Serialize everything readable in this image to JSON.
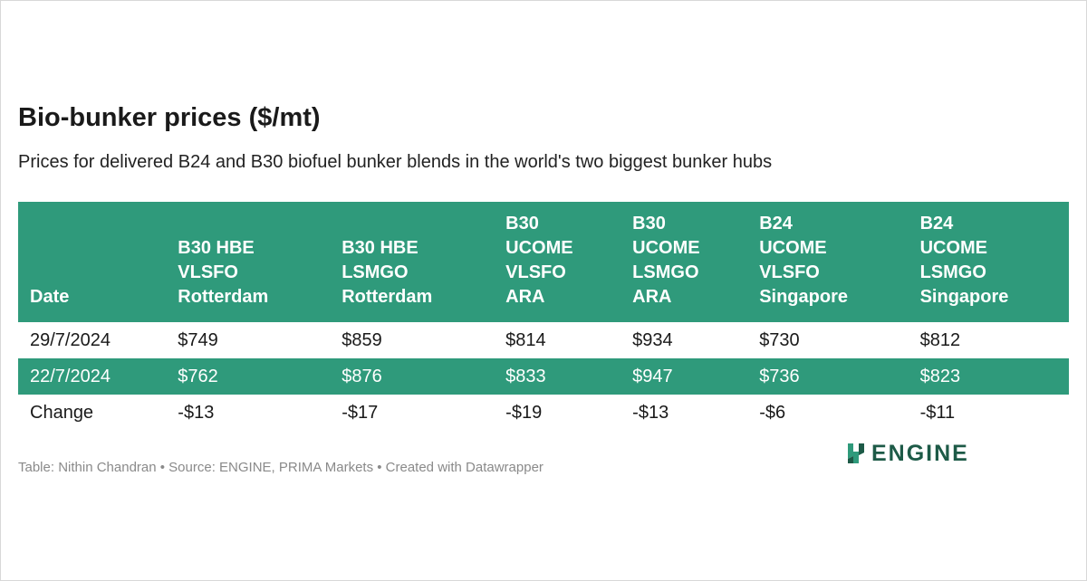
{
  "header": {
    "title": "Bio-bunker prices ($/mt)",
    "subtitle": "Prices for delivered B24 and B30 biofuel bunker blends in the world's two biggest bunker hubs"
  },
  "table": {
    "columns": [
      [
        "Date"
      ],
      [
        "B30 HBE",
        "VLSFO",
        "Rotterdam"
      ],
      [
        "B30 HBE",
        "LSMGO",
        "Rotterdam"
      ],
      [
        "B30",
        "UCOME",
        "VLSFO",
        "ARA"
      ],
      [
        "B30",
        "UCOME",
        "LSMGO",
        "ARA"
      ],
      [
        "B24",
        "UCOME",
        "VLSFO",
        "Singapore"
      ],
      [
        "B24",
        "UCOME",
        "LSMGO",
        "Singapore"
      ]
    ],
    "rows": [
      [
        "29/7/2024",
        "$749",
        "$859",
        "$814",
        "$934",
        "$730",
        "$812"
      ],
      [
        "22/7/2024",
        "$762",
        "$876",
        "$833",
        "$947",
        "$736",
        "$823"
      ],
      [
        "Change",
        "-$13",
        "-$17",
        "-$19",
        "-$13",
        "-$6",
        "-$11"
      ]
    ]
  },
  "footer": {
    "credit": "Table: Nithin Chandran • Source: ENGINE, PRIMA Markets • Created with Datawrapper",
    "logo": "ENGINE"
  }
}
